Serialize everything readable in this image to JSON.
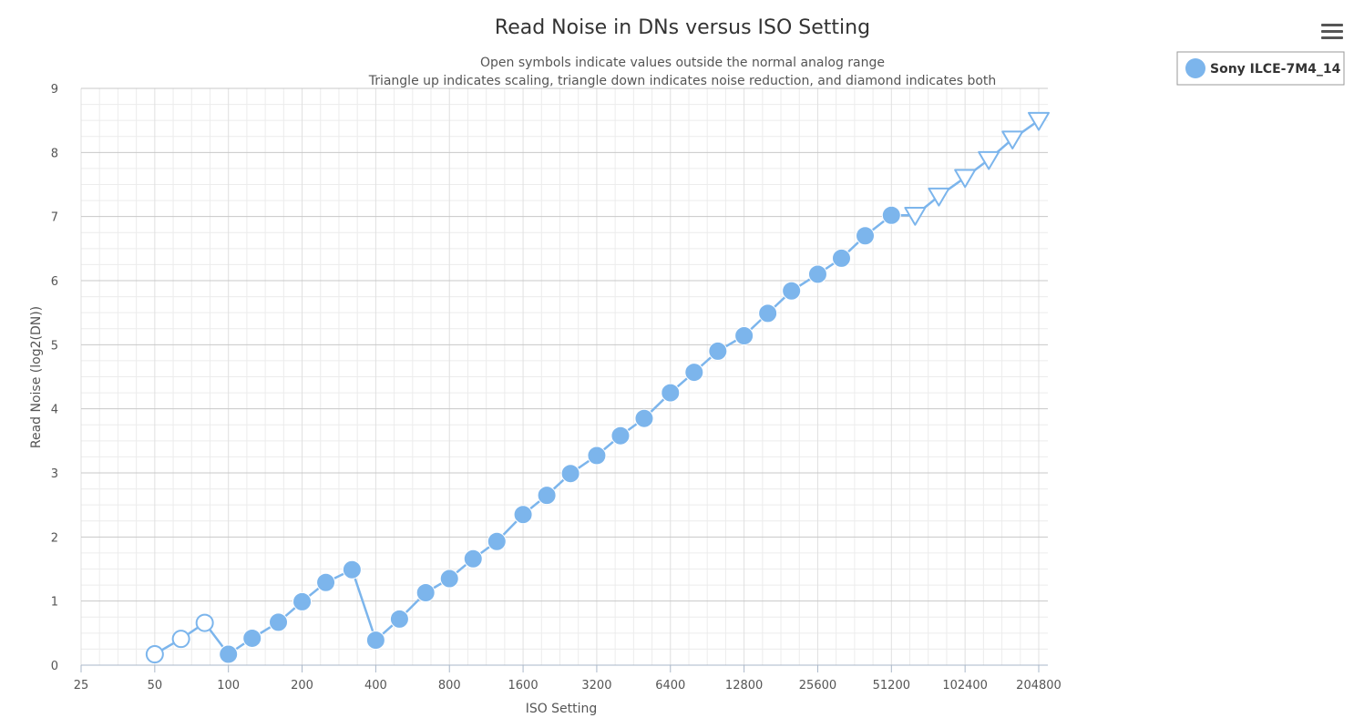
{
  "chart_data": {
    "type": "line",
    "title": "Read Noise in DNs versus ISO Setting",
    "subtitles": [
      "Open symbols indicate values outside the normal analog range",
      "Triangle up indicates scaling, triangle down indicates noise reduction, and diamond indicates both"
    ],
    "xlabel": "ISO Setting",
    "ylabel": "Read Noise (log2(DN))",
    "x_scale": "log2",
    "xlim": [
      25,
      204800
    ],
    "ylim": [
      0,
      9
    ],
    "x_ticks": [
      "25",
      "50",
      "100",
      "200",
      "400",
      "800",
      "1600",
      "3200",
      "6400",
      "12800",
      "25600",
      "51200",
      "102400",
      "204800"
    ],
    "y_ticks": [
      "0",
      "1",
      "2",
      "3",
      "4",
      "5",
      "6",
      "7",
      "8",
      "9"
    ],
    "grid": true,
    "legend_position": "top-right",
    "series_color": "#7cb5ec",
    "series": [
      {
        "name": "Sony ILCE-7M4_14",
        "points": [
          {
            "x": 50,
            "y": 0.17,
            "marker": "open-circle"
          },
          {
            "x": 64,
            "y": 0.41,
            "marker": "open-circle"
          },
          {
            "x": 80,
            "y": 0.66,
            "marker": "open-circle"
          },
          {
            "x": 100,
            "y": 0.17,
            "marker": "circle"
          },
          {
            "x": 125,
            "y": 0.42,
            "marker": "circle"
          },
          {
            "x": 160,
            "y": 0.67,
            "marker": "circle"
          },
          {
            "x": 200,
            "y": 0.99,
            "marker": "circle"
          },
          {
            "x": 250,
            "y": 1.29,
            "marker": "circle"
          },
          {
            "x": 320,
            "y": 1.49,
            "marker": "circle"
          },
          {
            "x": 400,
            "y": 0.39,
            "marker": "circle"
          },
          {
            "x": 500,
            "y": 0.72,
            "marker": "circle"
          },
          {
            "x": 640,
            "y": 1.13,
            "marker": "circle"
          },
          {
            "x": 800,
            "y": 1.35,
            "marker": "circle"
          },
          {
            "x": 1000,
            "y": 1.66,
            "marker": "circle"
          },
          {
            "x": 1250,
            "y": 1.93,
            "marker": "circle"
          },
          {
            "x": 1600,
            "y": 2.35,
            "marker": "circle"
          },
          {
            "x": 2000,
            "y": 2.65,
            "marker": "circle"
          },
          {
            "x": 2500,
            "y": 2.99,
            "marker": "circle"
          },
          {
            "x": 3200,
            "y": 3.27,
            "marker": "circle"
          },
          {
            "x": 4000,
            "y": 3.58,
            "marker": "circle"
          },
          {
            "x": 5000,
            "y": 3.85,
            "marker": "circle"
          },
          {
            "x": 6400,
            "y": 4.25,
            "marker": "circle"
          },
          {
            "x": 8000,
            "y": 4.57,
            "marker": "circle"
          },
          {
            "x": 10000,
            "y": 4.9,
            "marker": "circle"
          },
          {
            "x": 12800,
            "y": 5.14,
            "marker": "circle"
          },
          {
            "x": 16000,
            "y": 5.49,
            "marker": "circle"
          },
          {
            "x": 20000,
            "y": 5.84,
            "marker": "circle"
          },
          {
            "x": 25600,
            "y": 6.1,
            "marker": "circle"
          },
          {
            "x": 32000,
            "y": 6.35,
            "marker": "circle"
          },
          {
            "x": 40000,
            "y": 6.7,
            "marker": "circle"
          },
          {
            "x": 51200,
            "y": 7.02,
            "marker": "circle"
          },
          {
            "x": 64000,
            "y": 7.02,
            "marker": "open-triangle-down"
          },
          {
            "x": 80000,
            "y": 7.32,
            "marker": "open-triangle-down"
          },
          {
            "x": 102400,
            "y": 7.61,
            "marker": "open-triangle-down"
          },
          {
            "x": 128000,
            "y": 7.89,
            "marker": "open-triangle-down"
          },
          {
            "x": 160000,
            "y": 8.21,
            "marker": "open-triangle-down"
          },
          {
            "x": 204800,
            "y": 8.5,
            "marker": "open-triangle-down"
          }
        ]
      }
    ]
  },
  "menu_icon": "hamburger-menu-icon"
}
